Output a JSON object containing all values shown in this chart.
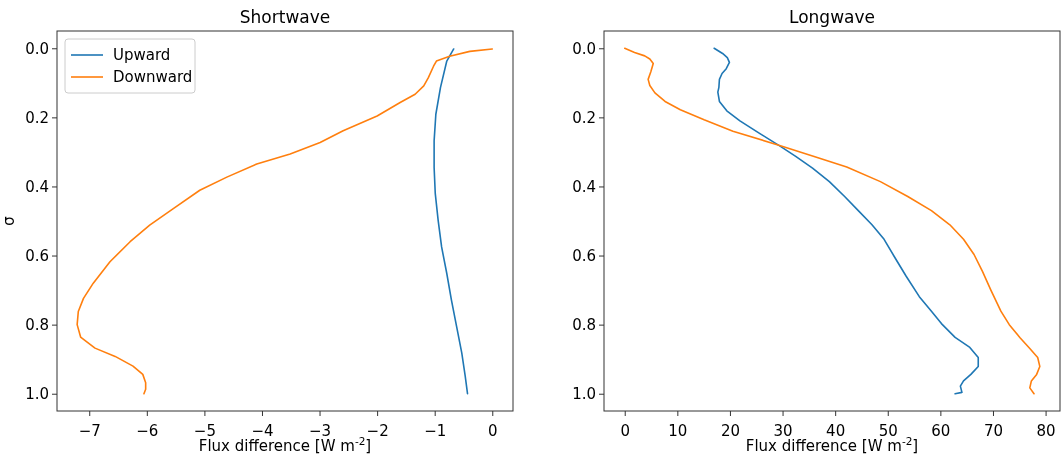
{
  "chart_data": [
    {
      "type": "line",
      "title": "Shortwave",
      "xlabel": "Flux difference [W m$^{-2}$]",
      "ylabel": "σ",
      "legend": "top left",
      "xlim": [
        -7.56,
        0.36
      ],
      "ylim": [
        1.05,
        -0.05
      ],
      "xticks": [
        {
          "value": -7,
          "label": "−7"
        },
        {
          "value": -6,
          "label": "−6"
        },
        {
          "value": -5,
          "label": "−5"
        },
        {
          "value": -4,
          "label": "−4"
        },
        {
          "value": -3,
          "label": "−3"
        },
        {
          "value": -2,
          "label": "−2"
        },
        {
          "value": -1,
          "label": "−1"
        },
        0
      ],
      "yticks": [
        {
          "value": 0,
          "label": "0.0"
        },
        {
          "value": 0.2,
          "label": "0.2"
        },
        {
          "value": 0.4,
          "label": "0.4"
        },
        {
          "value": 0.6,
          "label": "0.6"
        },
        {
          "value": 0.8,
          "label": "0.8"
        },
        {
          "value": 1,
          "label": "1.0"
        }
      ],
      "series": [
        {
          "name": "Upward",
          "color": "#1f77b4",
          "x": [
            -0.67,
            -0.79,
            -0.9,
            -0.98,
            -1.01,
            -1.01,
            -0.99,
            -0.94,
            -0.88,
            -0.79,
            -0.71,
            -0.62,
            -0.53,
            -0.47,
            -0.43
          ],
          "values": [
            0.002,
            0.037,
            0.114,
            0.191,
            0.268,
            0.345,
            0.421,
            0.498,
            0.575,
            0.652,
            0.728,
            0.805,
            0.882,
            0.949,
            1.0
          ]
        },
        {
          "name": "Downward",
          "color": "#ff7f0e",
          "x": [
            0,
            -0.39,
            -0.74,
            -0.97,
            -1.02,
            -1.11,
            -1.19,
            -1.34,
            -1.6,
            -2.0,
            -2.59,
            -2.99,
            -3.51,
            -4.09,
            -4.61,
            -5.08,
            -5.54,
            -5.95,
            -6.29,
            -6.64,
            -6.93,
            -7.1,
            -7.19,
            -7.21,
            -7.15,
            -6.9,
            -6.55,
            -6.24,
            -6.07,
            -6.02,
            -6.02,
            -6.05
          ],
          "values": [
            0.002,
            0.009,
            0.023,
            0.037,
            0.052,
            0.085,
            0.109,
            0.133,
            0.157,
            0.196,
            0.239,
            0.273,
            0.306,
            0.335,
            0.373,
            0.411,
            0.464,
            0.512,
            0.56,
            0.618,
            0.68,
            0.724,
            0.762,
            0.8,
            0.836,
            0.868,
            0.892,
            0.92,
            0.944,
            0.968,
            0.987,
            1.0
          ]
        }
      ]
    },
    {
      "type": "line",
      "title": "Longwave",
      "xlabel": "Flux difference [W m$^{-2}$]",
      "xlim": [
        -3.94,
        82.74
      ],
      "ylim": [
        1.05,
        -0.05
      ],
      "xticks": [
        0,
        10,
        20,
        30,
        40,
        50,
        60,
        70,
        80
      ],
      "yticks": [
        {
          "value": 0,
          "label": "0.0"
        },
        {
          "value": 0.2,
          "label": "0.2"
        },
        {
          "value": 0.4,
          "label": "0.4"
        },
        {
          "value": 0.6,
          "label": "0.6"
        },
        {
          "value": 0.8,
          "label": "0.8"
        },
        {
          "value": 1,
          "label": "1.0"
        }
      ],
      "series": [
        {
          "color": "#1f77b4",
          "x": [
            17.0,
            18.6,
            19.5,
            19.9,
            19.3,
            18.5,
            18.0,
            17.9,
            17.7,
            18.0,
            19.4,
            21.9,
            25.7,
            29.6,
            32.5,
            35.7,
            38.9,
            41.8,
            44.4,
            47.0,
            49.3,
            51.2,
            53.5,
            56.0,
            58.3,
            60.2,
            62.8,
            65.6,
            67.2,
            67.2,
            65.8,
            64.4,
            63.8,
            64.1,
            62.8
          ],
          "values": [
            0.0,
            0.015,
            0.027,
            0.041,
            0.059,
            0.073,
            0.09,
            0.113,
            0.127,
            0.154,
            0.181,
            0.21,
            0.247,
            0.284,
            0.313,
            0.347,
            0.386,
            0.429,
            0.47,
            0.511,
            0.553,
            0.602,
            0.66,
            0.719,
            0.761,
            0.797,
            0.837,
            0.866,
            0.895,
            0.921,
            0.944,
            0.963,
            0.978,
            0.996,
            1.0
          ]
        },
        {
          "color": "#ff7f0e",
          "x": [
            0,
            1.87,
            3.8,
            4.77,
            5.42,
            4.96,
            4.45,
            4.77,
            5.74,
            7.67,
            10.57,
            15.09,
            20.57,
            29.6,
            36.0,
            42.2,
            48.6,
            53.8,
            58.3,
            61.8,
            64.4,
            66.4,
            68.0,
            69.6,
            71.5,
            73.1,
            75.1,
            77.0,
            78.5,
            78.9,
            78.3,
            77.3,
            77.0,
            77.8
          ],
          "values": [
            0,
            0.012,
            0.022,
            0.031,
            0.044,
            0.068,
            0.09,
            0.108,
            0.129,
            0.154,
            0.178,
            0.207,
            0.24,
            0.282,
            0.313,
            0.344,
            0.386,
            0.429,
            0.47,
            0.511,
            0.553,
            0.597,
            0.646,
            0.7,
            0.761,
            0.8,
            0.837,
            0.869,
            0.895,
            0.921,
            0.944,
            0.963,
            0.983,
            1.0
          ]
        }
      ]
    }
  ]
}
